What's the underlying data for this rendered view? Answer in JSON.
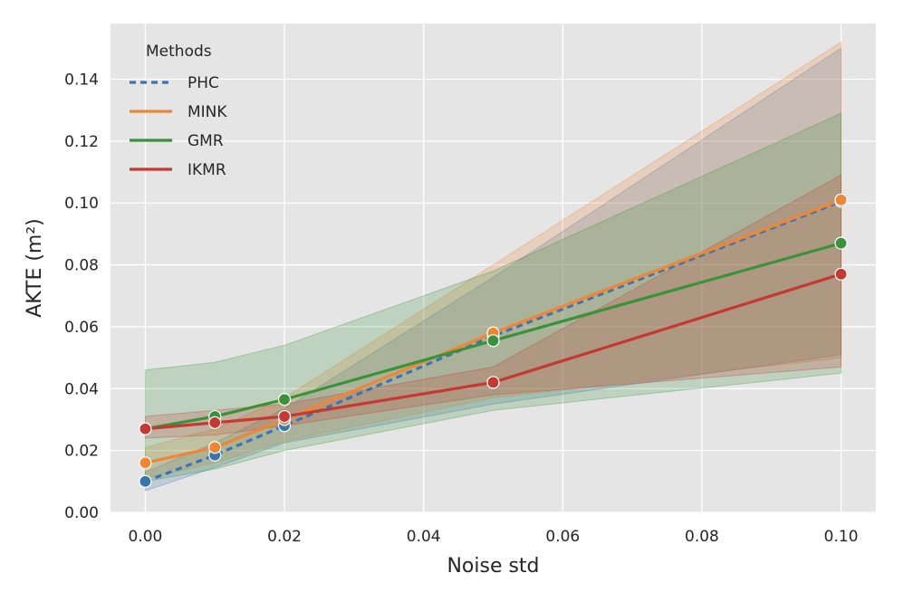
{
  "chart_data": {
    "type": "line",
    "xlabel": "Noise std",
    "ylabel": "AKTE (m²)",
    "xlim": [
      -0.005,
      0.105
    ],
    "ylim": [
      0.0,
      0.158
    ],
    "xticks": [
      0.0,
      0.02,
      0.04,
      0.06,
      0.08,
      0.1
    ],
    "xtick_labels": [
      "0.00",
      "0.02",
      "0.04",
      "0.06",
      "0.08",
      "0.10"
    ],
    "yticks": [
      0.0,
      0.02,
      0.04,
      0.06,
      0.08,
      0.1,
      0.12,
      0.14
    ],
    "ytick_labels": [
      "0.00",
      "0.02",
      "0.04",
      "0.06",
      "0.08",
      "0.10",
      "0.12",
      "0.14"
    ],
    "grid": true,
    "background": "#e5e5e5",
    "legend": {
      "title": "Methods",
      "location": "upper-left"
    },
    "x": [
      0.0,
      0.01,
      0.02,
      0.05,
      0.1
    ],
    "series": [
      {
        "name": "PHC",
        "color": "#3b75af",
        "linestyle": "dashed",
        "values": [
          0.01,
          0.0185,
          0.028,
          0.057,
          0.1005
        ],
        "lower": [
          0.007,
          0.0145,
          0.0225,
          0.035,
          0.051
        ],
        "upper": [
          0.013,
          0.0225,
          0.0335,
          0.076,
          0.15
        ]
      },
      {
        "name": "MINK",
        "color": "#ef8636",
        "linestyle": "solid",
        "values": [
          0.016,
          0.021,
          0.03,
          0.058,
          0.101
        ],
        "lower": [
          0.011,
          0.016,
          0.023,
          0.037,
          0.05
        ],
        "upper": [
          0.021,
          0.027,
          0.037,
          0.08,
          0.152
        ]
      },
      {
        "name": "GMR",
        "color": "#3a923a",
        "linestyle": "solid",
        "values": [
          0.027,
          0.031,
          0.0365,
          0.0555,
          0.087
        ],
        "lower": [
          0.01,
          0.014,
          0.02,
          0.033,
          0.045
        ],
        "upper": [
          0.046,
          0.0485,
          0.054,
          0.078,
          0.129
        ]
      },
      {
        "name": "IKMR",
        "color": "#c53932",
        "linestyle": "solid",
        "values": [
          0.027,
          0.029,
          0.031,
          0.042,
          0.077
        ],
        "lower": [
          0.024,
          0.025,
          0.028,
          0.038,
          0.047
        ],
        "upper": [
          0.031,
          0.033,
          0.035,
          0.047,
          0.109
        ]
      }
    ]
  }
}
